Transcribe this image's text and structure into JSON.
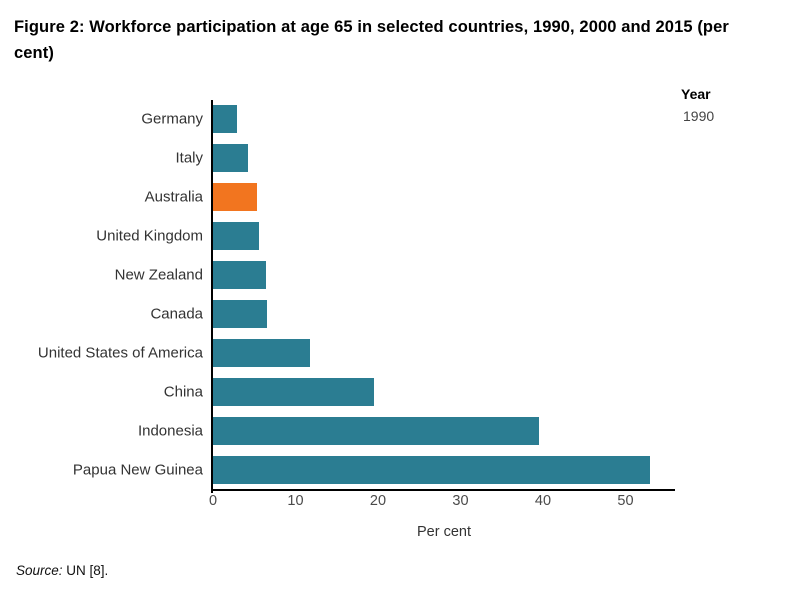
{
  "title": "Figure 2: Workforce participation at age 65 in selected countries, 1990, 2000 and 2015 (per cent)",
  "legend": {
    "title": "Year",
    "selected_year": "1990"
  },
  "source": {
    "prefix": "Source:",
    "text": " UN [8]."
  },
  "colors": {
    "bar": "#2b7d92",
    "highlight": "#f2751f",
    "axis": "#000000",
    "category_label": "#333333",
    "tick_label": "#4a4a4a"
  },
  "chart_data": {
    "type": "bar",
    "orientation": "horizontal",
    "title": "Figure 2: Workforce participation at age 65 in selected countries, 1990, 2000 and 2015 (per cent)",
    "series_name": "1990",
    "categories": [
      "Germany",
      "Italy",
      "Australia",
      "United Kingdom",
      "New Zealand",
      "Canada",
      "United States of America",
      "China",
      "Indonesia",
      "Papua New Guinea"
    ],
    "values": [
      2.9,
      4.3,
      5.3,
      5.6,
      6.4,
      6.6,
      11.7,
      19.5,
      39.5,
      53.0
    ],
    "highlight_category": "Australia",
    "xlabel": "Per cent",
    "xlim": [
      0,
      56
    ],
    "xticks": [
      0,
      10,
      20,
      30,
      40,
      50
    ],
    "grid": false,
    "legend_position": "top-right"
  }
}
